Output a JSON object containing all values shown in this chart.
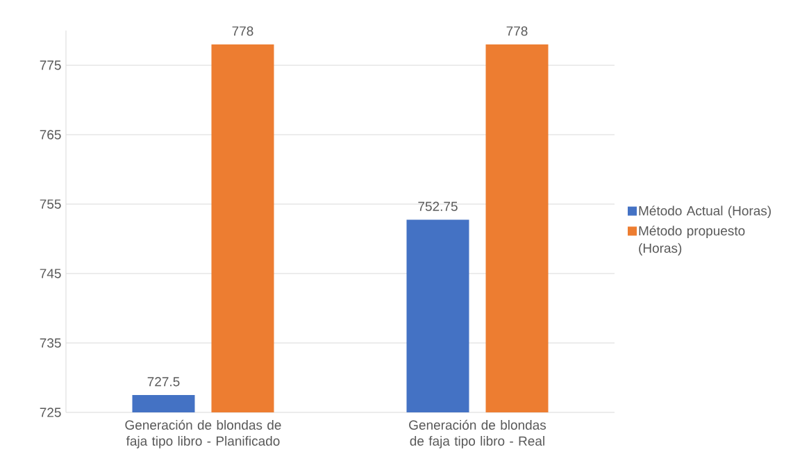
{
  "chart_data": {
    "type": "bar",
    "categories": [
      "Generación de blondas de faja tipo libro - Planificado",
      "Generación de blondas de faja tipo libro - Real"
    ],
    "series": [
      {
        "name": "Método Actual (Horas)",
        "color": "#4472c4",
        "values": [
          727.5,
          752.75
        ]
      },
      {
        "name": "Método propuesto (Horas)",
        "color": "#ed7d31",
        "values": [
          778,
          778
        ]
      }
    ],
    "ylim": [
      725,
      780
    ],
    "yticks": [
      725,
      735,
      745,
      755,
      765,
      775
    ],
    "grid": "y",
    "legend": "right",
    "data_labels": true
  }
}
